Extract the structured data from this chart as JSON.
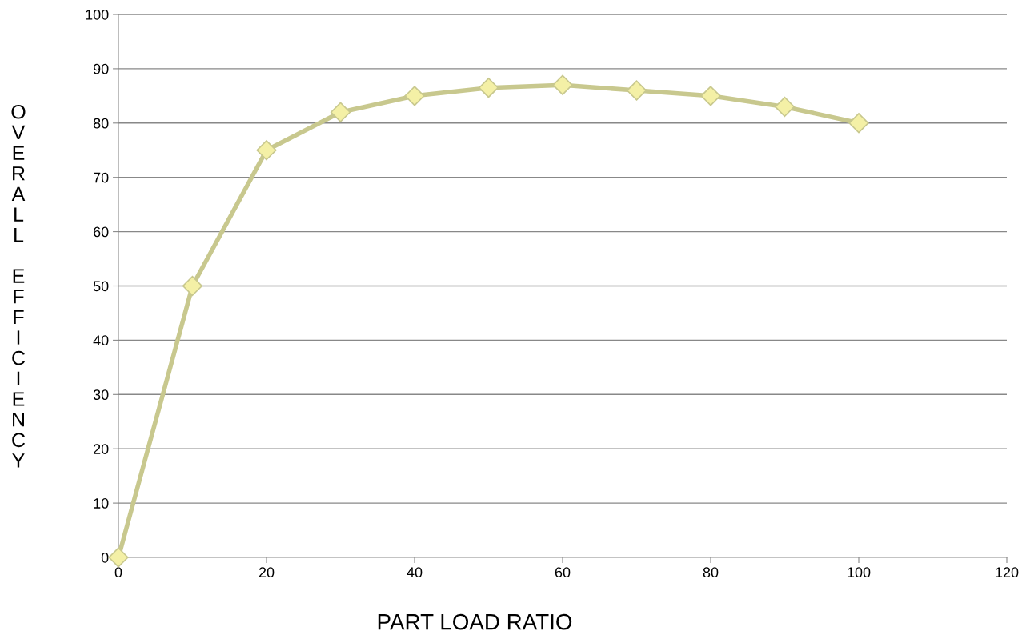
{
  "chart_data": {
    "type": "line",
    "xlabel": "PART LOAD RATIO",
    "ylabel": "OVERALL EFFICIENCY",
    "x": [
      0,
      10,
      20,
      30,
      40,
      50,
      60,
      70,
      80,
      90,
      100
    ],
    "series": [
      {
        "color": "#c8c88e",
        "values": [
          0,
          50,
          75,
          82,
          85,
          86.5,
          87,
          86,
          85,
          83,
          80
        ]
      }
    ],
    "xlim": [
      0,
      120
    ],
    "xticks": [
      0,
      20,
      40,
      60,
      80,
      100,
      120
    ],
    "ylim": [
      0,
      100
    ],
    "yticks": [
      0,
      10,
      20,
      30,
      40,
      50,
      60,
      70,
      80,
      90,
      100
    ],
    "grid": "y",
    "marker": "diamond",
    "line_style": "solid"
  }
}
